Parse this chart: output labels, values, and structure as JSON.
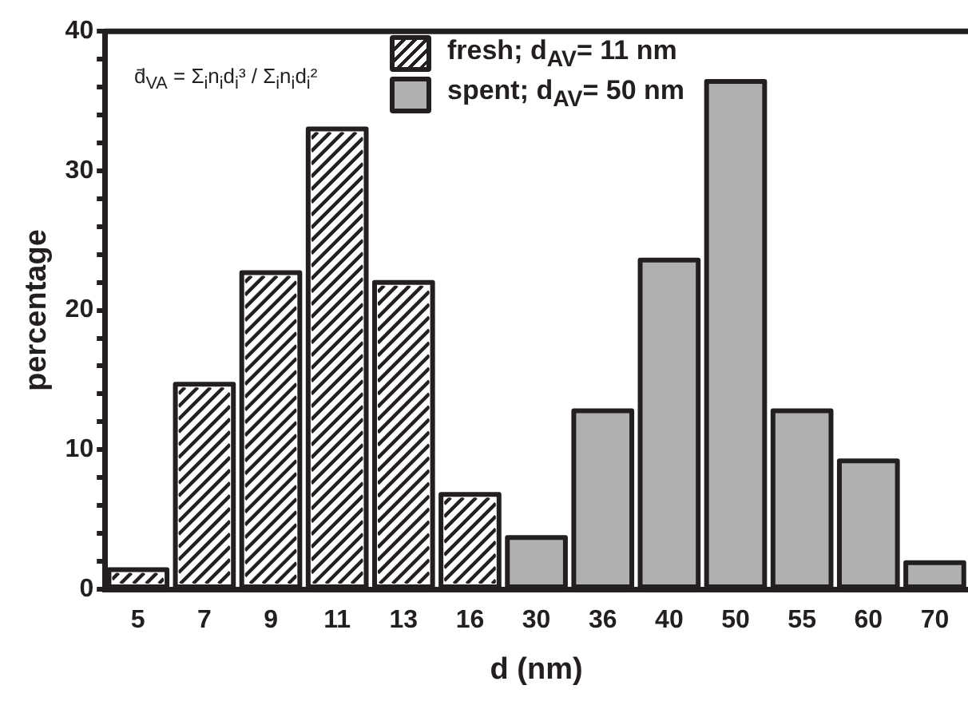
{
  "chart_data": {
    "type": "bar",
    "xlabel": "d (nm)",
    "ylabel": "percentage",
    "categories": [
      "5",
      "7",
      "9",
      "11",
      "13",
      "16",
      "30",
      "36",
      "40",
      "50",
      "55",
      "60",
      "70"
    ],
    "series": [
      {
        "name": "fresh; d$_{AV}$= 11 nm",
        "color": "#ffffff",
        "values": [
          1.4,
          14.7,
          22.7,
          33.0,
          22.0,
          6.8,
          null,
          null,
          null,
          null,
          null,
          null,
          null
        ]
      },
      {
        "name": "spent; d$_{AV}$= 50 nm",
        "color": "#b0b0b2",
        "values": [
          null,
          null,
          null,
          null,
          null,
          null,
          3.7,
          12.8,
          23.6,
          36.4,
          12.8,
          9.2,
          1.9
        ]
      }
    ],
    "ylim": [
      0,
      40
    ],
    "yticks": [
      0,
      {
        "value": 2,
        "label": null
      },
      {
        "value": 4,
        "label": null
      },
      {
        "value": 6,
        "label": null
      },
      {
        "value": 8,
        "label": null
      },
      10,
      {
        "value": 12,
        "label": null
      },
      {
        "value": 14,
        "label": null
      },
      {
        "value": 16,
        "label": null
      },
      {
        "value": 18,
        "label": null
      },
      20,
      {
        "value": 22,
        "label": null
      },
      {
        "value": 24,
        "label": null
      },
      {
        "value": 26,
        "label": null
      },
      {
        "value": 28,
        "label": null
      },
      30,
      {
        "value": 32,
        "label": null
      },
      {
        "value": 34,
        "label": null
      },
      {
        "value": 36,
        "label": null
      },
      {
        "value": 38,
        "label": null
      },
      40
    ],
    "grid": false,
    "legend": "top right",
    "annotations": [
      "d̄$_{VA}$ = Σ$_{i}$n$_{i}$d$_{i}$³ / Σ$_{i}$n$_{i}$d$_{i}$²"
    ]
  }
}
